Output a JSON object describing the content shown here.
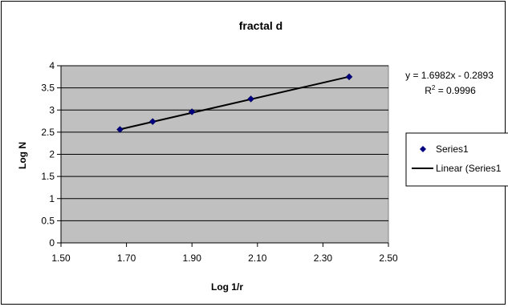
{
  "chart_data": {
    "type": "scatter",
    "title": "fractal d",
    "xlabel": "Log 1/r",
    "ylabel": "Log N",
    "xlim": [
      1.5,
      2.5
    ],
    "ylim": [
      0,
      4
    ],
    "x_ticks": [
      1.5,
      1.7,
      1.9,
      2.1,
      2.3,
      2.5
    ],
    "x_tick_labels": [
      "1.50",
      "1.70",
      "1.90",
      "2.10",
      "2.30",
      "2.50"
    ],
    "y_ticks": [
      0,
      0.5,
      1,
      1.5,
      2,
      2.5,
      3,
      3.5,
      4
    ],
    "y_tick_labels": [
      "0",
      "0.5",
      "1",
      "1.5",
      "2",
      "2.5",
      "3",
      "3.5",
      "4"
    ],
    "grid": "horizontal",
    "plot_background": "#c0c0c0",
    "marker_color": "#000080",
    "series": [
      {
        "name": "Series1",
        "x": [
          1.68,
          1.78,
          1.9,
          2.08,
          2.38
        ],
        "y": [
          2.56,
          2.74,
          2.96,
          3.25,
          3.75
        ]
      }
    ],
    "trendline": {
      "name": "Linear (Series1)",
      "slope": 1.6982,
      "intercept": -0.2893,
      "x_range": [
        1.68,
        2.38
      ],
      "equation_text": "y = 1.6982x - 0.2893",
      "r2_prefix": "R",
      "r2_sup": "2",
      "r2_suffix": " = 0.9996"
    },
    "legend": {
      "position": "right",
      "entries": [
        "Series1",
        "Linear (Series1"
      ]
    }
  }
}
